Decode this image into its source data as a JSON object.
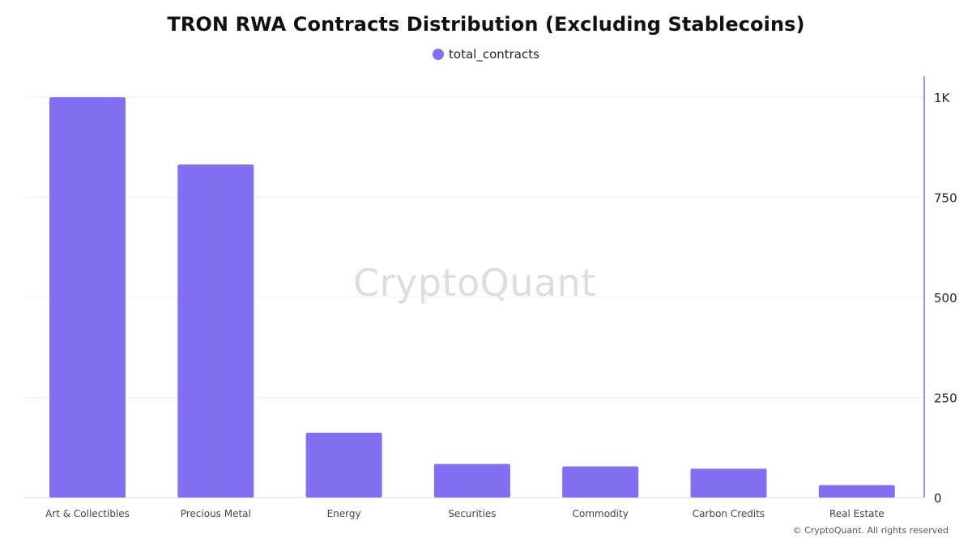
{
  "chart_data": {
    "type": "bar",
    "title": "TRON RWA Contracts Distribution (Excluding Stablecoins)",
    "categories": [
      "Art & Collectibles",
      "Precious Metal",
      "Energy",
      "Securities",
      "Commodity",
      "Carbon Credits",
      "Real Estate"
    ],
    "series": [
      {
        "name": "total_contracts",
        "values": [
          1000,
          832,
          162,
          84,
          78,
          72,
          31
        ],
        "color": "#8270f2"
      }
    ],
    "ylim": [
      0,
      1000
    ],
    "y_ticks": [
      {
        "value": 0,
        "label": "0"
      },
      {
        "value": 250,
        "label": "250"
      },
      {
        "value": 500,
        "label": "500"
      },
      {
        "value": 750,
        "label": "750"
      },
      {
        "value": 1000,
        "label": "1K"
      }
    ],
    "y_axis_side": "right",
    "grid": true,
    "legend_position": "top-center"
  },
  "watermark": "CryptoQuant",
  "copyright": "© CryptoQuant. All rights reserved",
  "colors": {
    "bar": "#8270f2",
    "axis": "#7e77cf",
    "grid": "#eeeeee"
  }
}
